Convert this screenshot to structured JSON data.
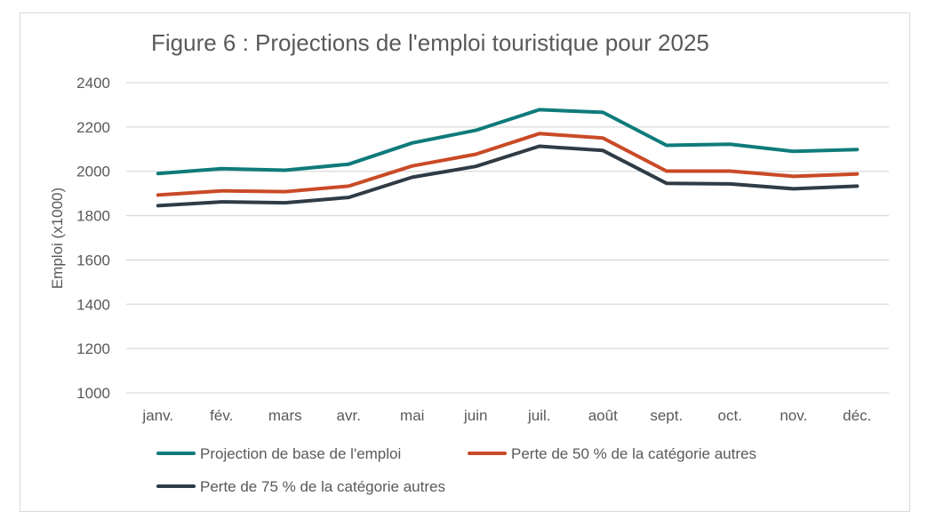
{
  "chart_data": {
    "type": "line",
    "title": "Figure 6 : Projections de l'emploi touristique pour 2025",
    "ylabel": "Emploi (x1000)",
    "xlabel": "",
    "ylim": [
      1000,
      2400
    ],
    "yticks": [
      1000,
      1200,
      1400,
      1600,
      1800,
      2000,
      2200,
      2400
    ],
    "grid": true,
    "legend_position": "bottom",
    "categories": [
      "janv.",
      "fév.",
      "mars",
      "avr.",
      "mai",
      "juin",
      "juil.",
      "août",
      "sept.",
      "oct.",
      "nov.",
      "déc."
    ],
    "series": [
      {
        "name": "Projection de base de l'emploi",
        "color": "#0f7b7b",
        "values": [
          1990,
          2012,
          2005,
          2032,
          2128,
          2185,
          2278,
          2266,
          2117,
          2122,
          2090,
          2098
        ]
      },
      {
        "name": "Perte de 50 % de la catégorie autres",
        "color": "#c94a26",
        "values": [
          1893,
          1912,
          1908,
          1933,
          2024,
          2077,
          2170,
          2150,
          2001,
          2001,
          1977,
          1988
        ]
      },
      {
        "name": "Perte de 75 % de la catégorie autres",
        "color": "#2f3b45",
        "values": [
          1845,
          1862,
          1858,
          1882,
          1973,
          2022,
          2113,
          2094,
          1946,
          1943,
          1921,
          1933
        ]
      }
    ]
  }
}
